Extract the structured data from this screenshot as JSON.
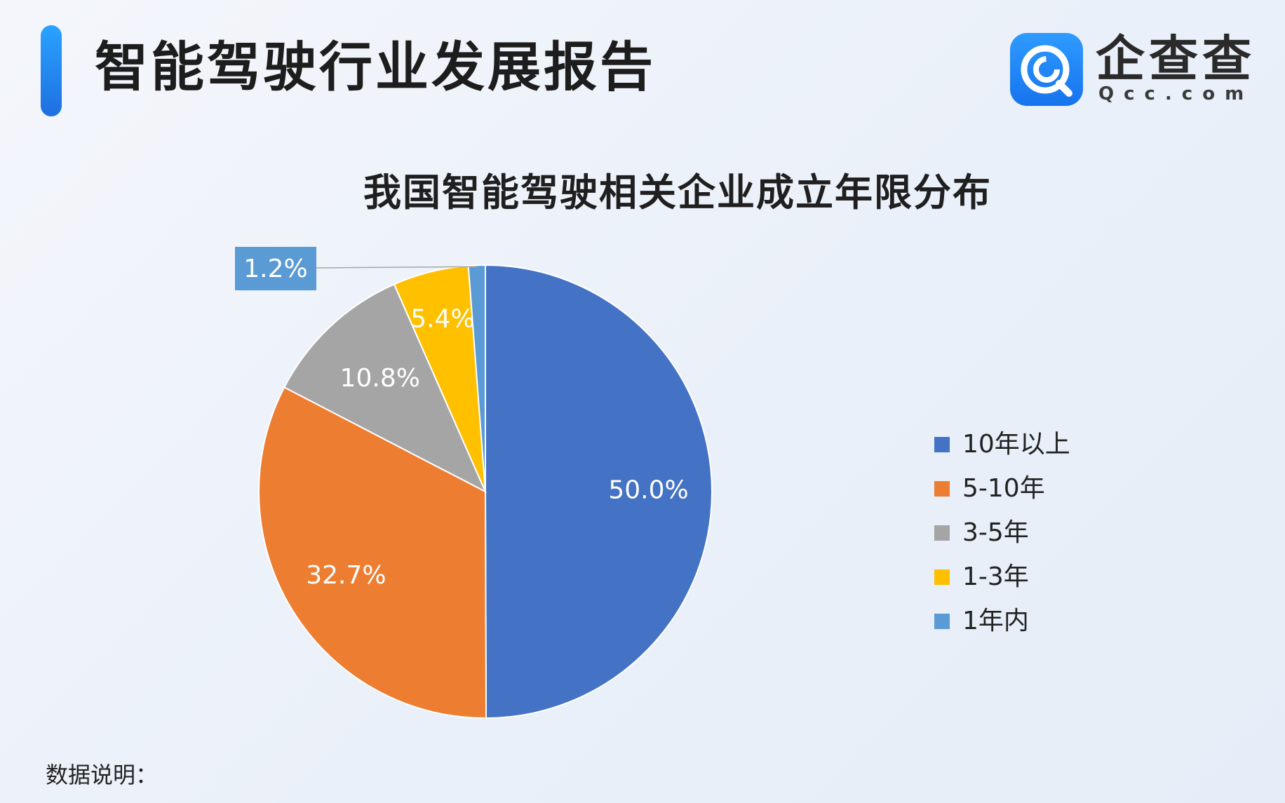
{
  "header": {
    "report_title": "智能驾驶行业发展报告",
    "logo_text_cn": "企查查",
    "logo_text_en": "Qcc.com",
    "accent_color": "#1f8cff"
  },
  "chart_data": {
    "type": "pie",
    "title": "我国智能驾驶相关企业成立年限分布",
    "categories": [
      "10年以上",
      "5-10年",
      "3-5年",
      "1-3年",
      "1年内"
    ],
    "values": [
      50.0,
      32.7,
      10.8,
      5.4,
      1.2
    ],
    "labels": [
      "50.0%",
      "32.7%",
      "10.8%",
      "5.4%",
      "1.2%"
    ],
    "colors": [
      "#4472c4",
      "#ed7d31",
      "#a5a5a5",
      "#ffc000",
      "#5b9bd5"
    ],
    "legend_position": "right"
  },
  "footnote": "数据说明："
}
